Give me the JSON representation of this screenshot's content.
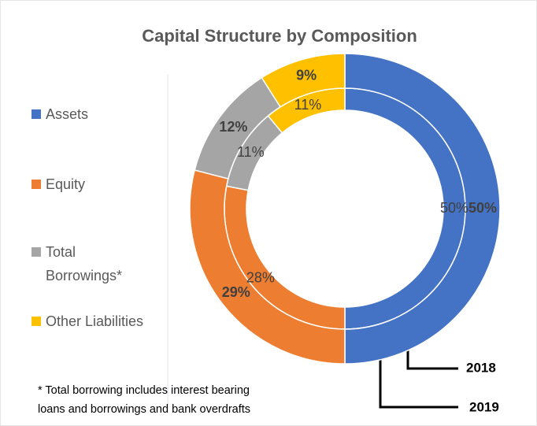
{
  "chart_data": {
    "type": "donut",
    "title": "Capital Structure by Composition",
    "categories": [
      "Assets",
      "Equity",
      "Total Borrowings*",
      "Other Liabilities"
    ],
    "colors": [
      "#4472C4",
      "#ED7D31",
      "#A5A5A5",
      "#FFC000"
    ],
    "series": [
      {
        "name": "2018",
        "values": [
          50,
          28,
          11,
          11
        ],
        "value_labels": [
          "50%",
          "28%",
          "11%",
          "11%"
        ]
      },
      {
        "name": "2019",
        "values": [
          50,
          29,
          12,
          9
        ],
        "value_labels": [
          "50%",
          "29%",
          "12%",
          "9%"
        ]
      }
    ],
    "footnote": "* Total borrowing includes interest bearing loans and borrowings and bank overdrafts"
  }
}
